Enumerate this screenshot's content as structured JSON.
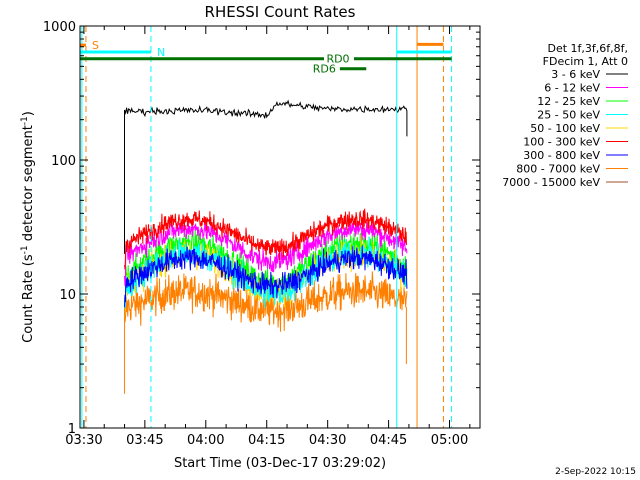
{
  "chart_data": {
    "type": "line",
    "title": "RHESSI Count Rates",
    "xlabel": "Start Time (03-Dec-17 03:29:02)",
    "ylabel_pre": "Count Rate (s",
    "ylabel_sup": "-1",
    "ylabel_mid": " detector segment",
    "ylabel_sup2": "-1",
    "ylabel_post": ")",
    "y_scale": "log",
    "ylim": [
      1,
      1000
    ],
    "xlim": [
      "03:29:02",
      "05:07:30"
    ],
    "x_ticks": [
      "03:30",
      "03:45",
      "04:00",
      "04:15",
      "04:30",
      "04:45",
      "05:00"
    ],
    "y_ticks": [
      "1",
      "10",
      "100",
      "1000"
    ],
    "grid": false,
    "legend_position": "right",
    "legend_header": [
      "Det 1f,3f,6f,8f,",
      "FDecim 1, Att 0"
    ],
    "series": [
      {
        "name": "3 - 6 keV",
        "color": "#000000",
        "base": 235,
        "amp": 0.0,
        "noise": 0.03,
        "points": [
          [
            "03:40:00",
            230
          ],
          [
            "04:00:00",
            235
          ],
          [
            "04:15:00",
            215
          ],
          [
            "04:17:30",
            265
          ],
          [
            "04:30:00",
            240
          ],
          [
            "04:45:00",
            240
          ],
          [
            "04:49:30",
            240
          ]
        ]
      },
      {
        "name": "6 - 12 keV",
        "color": "#ff00ff",
        "base": 24,
        "amp": 0.28,
        "noise": 0.09
      },
      {
        "name": "12 - 25 keV",
        "color": "#00ff00",
        "base": 18,
        "amp": 0.33,
        "noise": 0.11
      },
      {
        "name": "25 - 50 keV",
        "color": "#00ffff",
        "base": 15,
        "amp": 0.34,
        "noise": 0.12
      },
      {
        "name": "50 - 100 keV",
        "color": "#ffd700",
        "base": 15,
        "amp": 0.32,
        "noise": 0.12
      },
      {
        "name": "100 - 300 keV",
        "color": "#ff0000",
        "base": 29,
        "amp": 0.25,
        "noise": 0.08
      },
      {
        "name": "300 - 800 keV",
        "color": "#0000ff",
        "base": 15,
        "amp": 0.24,
        "noise": 0.1
      },
      {
        "name": "800 - 7000 keV",
        "color": "#ff8000",
        "base": 9,
        "amp": 0.16,
        "noise": 0.15
      },
      {
        "name": "7000 - 15000 keV",
        "color": "#a0522d",
        "base": 0,
        "amp": 0.0,
        "noise": 0.0
      }
    ],
    "data_window": {
      "start": "03:40:00",
      "end": "04:49:30"
    },
    "modulation_peaks": [
      "03:56:00",
      "04:37:00"
    ],
    "vertical_lines": [
      {
        "time": "03:29:30",
        "color": "#00ffff",
        "style": "solid"
      },
      {
        "time": "03:30:30",
        "color": "#ff8000",
        "style": "dashed"
      },
      {
        "time": "03:46:30",
        "color": "#00ffff",
        "style": "dashed"
      },
      {
        "time": "04:47:00",
        "color": "#00ffff",
        "style": "solid"
      },
      {
        "time": "04:52:00",
        "color": "#ff8000",
        "style": "solid"
      },
      {
        "time": "04:58:30",
        "color": "#ff8000",
        "style": "dashed"
      },
      {
        "time": "05:00:30",
        "color": "#00ffff",
        "style": "dashed"
      }
    ],
    "flag_bars": [
      {
        "label": "S",
        "color": "#ff8000",
        "start": "03:29:02",
        "end": "03:30:30",
        "y": 720
      },
      {
        "label": "N",
        "color": "#00ffff",
        "start": "03:29:02",
        "end": "03:46:30",
        "y": 640
      },
      {
        "label": "",
        "color": "#00ffff",
        "start": "04:47:00",
        "end": "05:00:30",
        "y": 640
      },
      {
        "label": "",
        "color": "#ff8000",
        "start": "04:52:00",
        "end": "04:58:30",
        "y": 730
      },
      {
        "label": "RD0",
        "color": "#007000",
        "start": "03:29:02",
        "end": "05:00:30",
        "y": 570
      },
      {
        "label": "RD6",
        "color": "#007000",
        "start": "04:33:00",
        "end": "04:39:30",
        "y": 480
      }
    ]
  },
  "footer_date": "2-Sep-2022 10:15"
}
